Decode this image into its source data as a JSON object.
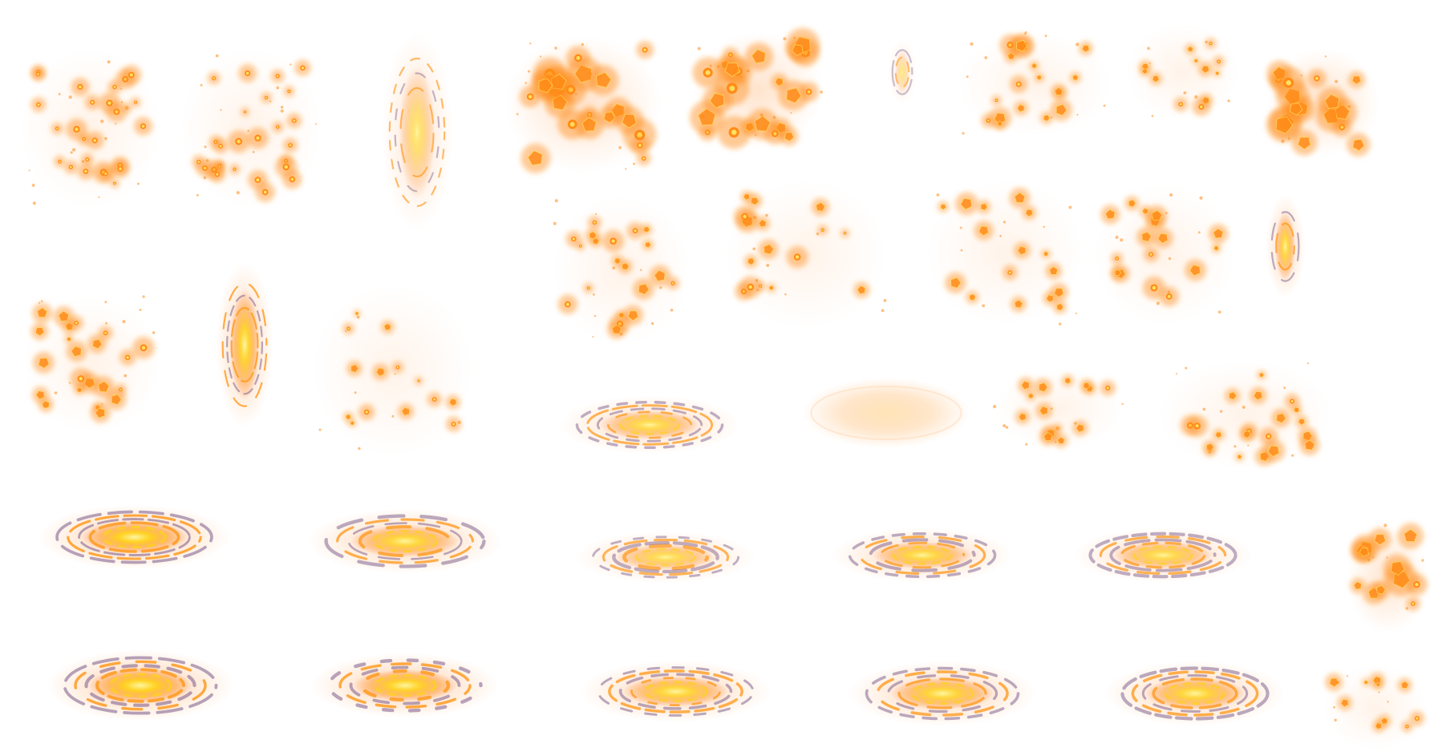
{
  "sheet": {
    "kind": "sprite-sheet",
    "background": "#ffffff",
    "palette": {
      "core": "#fff6a0",
      "inner": "#ffd21a",
      "mid": "#ff9a1e",
      "outer": "#ff6a10",
      "glow": "#ffb070",
      "ember": "#ff8c1a",
      "ember_core": "#ffe060",
      "ring_orange": "#ff9a1e",
      "ring_violet": "#7a5a8a"
    }
  },
  "frames": [
    {
      "type": "embers",
      "seed": 11,
      "count": 26,
      "pentagons": false
    },
    {
      "type": "embers",
      "seed": 12,
      "count": 26,
      "pentagons": false
    },
    {
      "type": "vportal",
      "seed": 13,
      "intensity": 0.55
    },
    {
      "type": "embers",
      "seed": 14,
      "count": 22,
      "pentagons": true,
      "heavy": true
    },
    {
      "type": "embers",
      "seed": 15,
      "count": 22,
      "pentagons": true,
      "heavy": true
    },
    {
      "type": "vportal",
      "seed": 16,
      "intensity": 0.4,
      "thin": true
    },
    {
      "type": "embers",
      "seed": 17,
      "count": 18,
      "pentagons": true
    },
    {
      "type": "embers",
      "seed": 18,
      "count": 12,
      "pentagons": true,
      "sparse": true
    },
    {
      "type": "embers",
      "seed": 19,
      "count": 16,
      "pentagons": true,
      "heavy": true
    },
    {
      "type": "embers",
      "seed": 21,
      "count": 20,
      "pentagons": true
    },
    {
      "type": "embers",
      "seed": 22,
      "count": 16,
      "pentagons": true
    },
    {
      "type": "embers",
      "seed": 23,
      "count": 16,
      "pentagons": true
    },
    {
      "type": "embers",
      "seed": 24,
      "count": 16,
      "pentagons": true
    },
    {
      "type": "vportal",
      "seed": 25,
      "intensity": 0.8,
      "thin": true
    },
    {
      "type": "embers",
      "seed": 31,
      "count": 22,
      "pentagons": true
    },
    {
      "type": "vportal",
      "seed": 32,
      "intensity": 0.9
    },
    {
      "type": "embers",
      "seed": 33,
      "count": 14,
      "pentagons": true,
      "sparse": true
    },
    {
      "type": "portal",
      "seed": 34,
      "intensity": 0.75
    },
    {
      "type": "glow",
      "seed": 35,
      "intensity": 0.35
    },
    {
      "type": "embers",
      "seed": 36,
      "count": 14,
      "pentagons": true,
      "sparse": true
    },
    {
      "type": "embers",
      "seed": 37,
      "count": 20,
      "pentagons": true
    },
    {
      "type": "portal",
      "seed": 41,
      "intensity": 1.0,
      "bright": true
    },
    {
      "type": "portal",
      "seed": 42,
      "intensity": 0.85
    },
    {
      "type": "portal",
      "seed": 43,
      "intensity": 0.7
    },
    {
      "type": "portal",
      "seed": 44,
      "intensity": 0.8
    },
    {
      "type": "portal",
      "seed": 45,
      "intensity": 0.75
    },
    {
      "type": "embers",
      "seed": 46,
      "count": 12,
      "pentagons": true,
      "heavy": true
    },
    {
      "type": "portal",
      "seed": 51,
      "intensity": 1.0,
      "bright": true
    },
    {
      "type": "portal",
      "seed": 52,
      "intensity": 0.95,
      "bright": true
    },
    {
      "type": "portal",
      "seed": 53,
      "intensity": 0.85
    },
    {
      "type": "portal",
      "seed": 54,
      "intensity": 0.85
    },
    {
      "type": "portal",
      "seed": 55,
      "intensity": 0.85
    },
    {
      "type": "embers",
      "seed": 56,
      "count": 10,
      "pentagons": true,
      "sparse": true
    }
  ]
}
